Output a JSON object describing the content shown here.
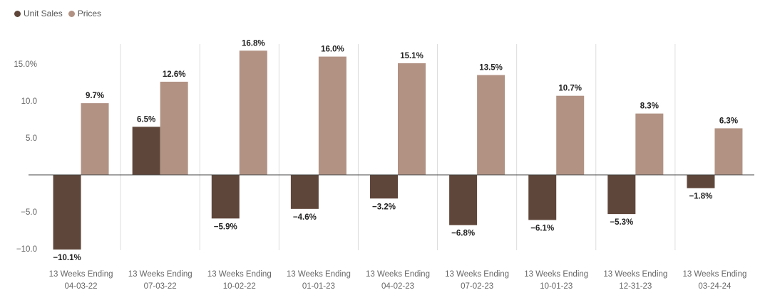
{
  "legend": {
    "items": [
      {
        "label": "Unit Sales",
        "color": "#5f463a"
      },
      {
        "label": "Prices",
        "color": "#b19283"
      }
    ]
  },
  "chart_data": {
    "type": "bar",
    "categories": [
      [
        "13 Weeks Ending",
        "04-03-22"
      ],
      [
        "13 Weeks Ending",
        "07-03-22"
      ],
      [
        "13 Weeks Ending",
        "10-02-22"
      ],
      [
        "13 Weeks Ending",
        "01-01-23"
      ],
      [
        "13 Weeks Ending",
        "04-02-23"
      ],
      [
        "13 Weeks Ending",
        "07-02-23"
      ],
      [
        "13 Weeks Ending",
        "10-01-23"
      ],
      [
        "13 Weeks Ending",
        "12-31-23"
      ],
      [
        "13 Weeks Ending",
        "03-24-24"
      ]
    ],
    "series": [
      {
        "name": "Unit Sales",
        "color": "#5f463a",
        "values": [
          -10.1,
          6.5,
          -5.9,
          -4.6,
          -3.2,
          -6.8,
          -6.1,
          -5.3,
          -1.8
        ],
        "data_labels": [
          "−10.1%",
          "6.5%",
          "−5.9%",
          "−4.6%",
          "−3.2%",
          "−6.8%",
          "−6.1%",
          "−5.3%",
          "−1.8%"
        ]
      },
      {
        "name": "Prices",
        "color": "#b19283",
        "values": [
          9.7,
          12.6,
          16.8,
          16.0,
          15.1,
          13.5,
          10.7,
          8.3,
          6.3
        ],
        "data_labels": [
          "9.7%",
          "12.6%",
          "16.8%",
          "16.0%",
          "15.1%",
          "13.5%",
          "10.7%",
          "8.3%",
          "6.3%"
        ]
      }
    ],
    "y_ticks": [
      15,
      10,
      5,
      -5,
      -10
    ],
    "y_tick_labels": [
      "15.0%",
      "10.0",
      "5.0",
      "−5.0",
      "−10.0"
    ],
    "ylim": [
      -10.3,
      17.5
    ],
    "grid": "vertical category separators",
    "legend_position": "top-left"
  }
}
